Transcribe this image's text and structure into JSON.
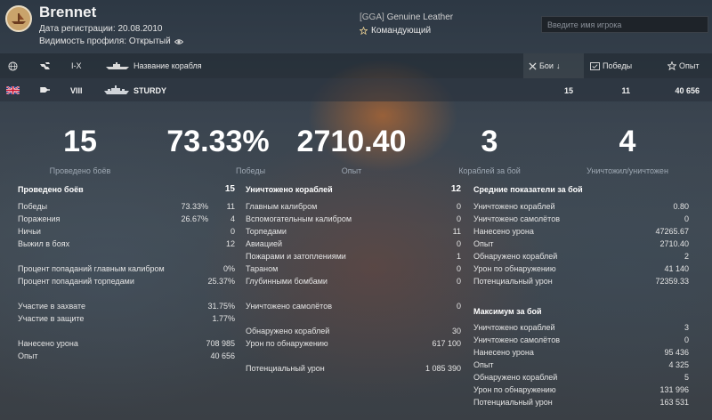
{
  "player": {
    "name": "Brennet",
    "reg_date": "Дата регистрации: 20.08.2010",
    "profile_visibility": "Видимость профиля: Открытый",
    "clan_tag": "[GGA]",
    "clan_name": "Genuine Leather",
    "rank": "Командующий"
  },
  "search": {
    "placeholder": "Введите имя игрока"
  },
  "table_header": {
    "tier": "I-X",
    "ship_name": "Название корабля",
    "battles": "Бои",
    "wins": "Победы",
    "exp": "Опыт"
  },
  "ship_row": {
    "tier": "VIII",
    "name": "STURDY",
    "battles": "15",
    "wins": "11",
    "exp": "40 656"
  },
  "summary": [
    {
      "value": "15",
      "label": "Проведено боёв"
    },
    {
      "value": "73.33%",
      "label": "Победы"
    },
    {
      "value": "2710.40",
      "label": "Опыт"
    },
    {
      "value": "3",
      "label": "Кораблей за бой"
    },
    {
      "value": "4",
      "label": "Уничтожил/уничтожен"
    }
  ],
  "col1": {
    "battles_label": "Проведено боёв",
    "battles_value": "15",
    "wins_label": "Победы",
    "wins_pct": "73.33%",
    "wins_value": "11",
    "losses_label": "Поражения",
    "losses_pct": "26.67%",
    "losses_value": "4",
    "draws_label": "Ничьи",
    "draws_value": "0",
    "survived_label": "Выжил в боях",
    "survived_value": "12",
    "main_hit_label": "Процент попаданий главным калибром",
    "main_hit_value": "0%",
    "torp_hit_label": "Процент попаданий торпедами",
    "torp_hit_value": "25.37%",
    "capture_label": "Участие в захвате",
    "capture_value": "31.75%",
    "defense_label": "Участие в защите",
    "defense_value": "1.77%",
    "damage_label": "Нанесено урона",
    "damage_value": "708 985",
    "exp_label": "Опыт",
    "exp_value": "40 656"
  },
  "col2": {
    "destroyed_label": "Уничтожено кораблей",
    "destroyed_value": "12",
    "main_label": "Главным калибром",
    "main_value": "0",
    "secondary_label": "Вспомогательным калибром",
    "secondary_value": "0",
    "torpedo_label": "Торпедами",
    "torpedo_value": "11",
    "aviation_label": "Авиацией",
    "aviation_value": "0",
    "fire_label": "Пожарами и затоплениями",
    "fire_value": "1",
    "ram_label": "Тараном",
    "ram_value": "0",
    "depth_label": "Глубинными бомбами",
    "depth_value": "0",
    "planes_label": "Уничтожено самолётов",
    "planes_value": "0",
    "spotted_label": "Обнаружено кораблей",
    "spotted_value": "30",
    "spot_dmg_label": "Урон по обнаружению",
    "spot_dmg_value": "617 100",
    "potential_label": "Потенциальный урон",
    "potential_value": "1 085 390"
  },
  "col3": {
    "avg_title": "Средние показатели за бой",
    "avg_destroyed_label": "Уничтожено кораблей",
    "avg_destroyed_value": "0.80",
    "avg_planes_label": "Уничтожено самолётов",
    "avg_planes_value": "0",
    "avg_damage_label": "Нанесено урона",
    "avg_damage_value": "47265.67",
    "avg_exp_label": "Опыт",
    "avg_exp_value": "2710.40",
    "avg_spotted_label": "Обнаружено кораблей",
    "avg_spotted_value": "2",
    "avg_spot_dmg_label": "Урон по обнаружению",
    "avg_spot_dmg_value": "41 140",
    "avg_potential_label": "Потенциальный урон",
    "avg_potential_value": "72359.33",
    "max_title": "Максимум за бой",
    "max_destroyed_label": "Уничтожено кораблей",
    "max_destroyed_value": "3",
    "max_planes_label": "Уничтожено самолётов",
    "max_planes_value": "0",
    "max_damage_label": "Нанесено урона",
    "max_damage_value": "95 436",
    "max_exp_label": "Опыт",
    "max_exp_value": "4 325",
    "max_spotted_label": "Обнаружено кораблей",
    "max_spotted_value": "5",
    "max_spot_dmg_label": "Урон по обнаружению",
    "max_spot_dmg_value": "131 996",
    "max_potential_label": "Потенциальный урон",
    "max_potential_value": "163 531"
  }
}
